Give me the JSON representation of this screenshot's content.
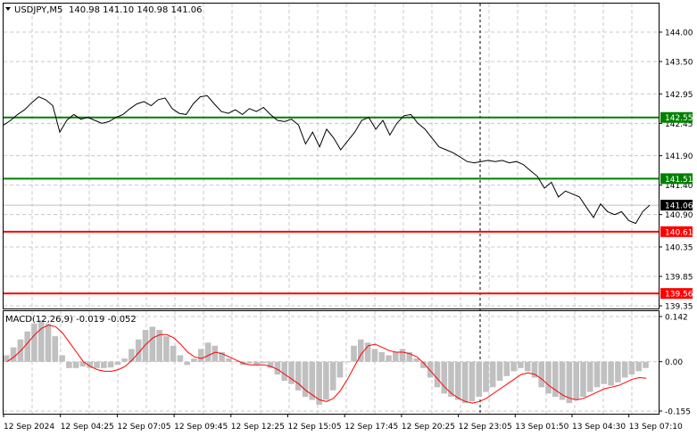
{
  "header": {
    "symbol": "USDJPY,M5",
    "ohlc": "140.98 141.10 140.98 141.06",
    "dropdown_icon": "triangle-down-icon"
  },
  "price_axis": {
    "ticks": [
      "144.00",
      "143.50",
      "142.95",
      "142.45",
      "141.90",
      "141.40",
      "140.90",
      "140.35",
      "139.85",
      "139.35"
    ],
    "tick_values": [
      144.0,
      143.5,
      142.95,
      142.45,
      141.9,
      141.4,
      140.9,
      140.35,
      139.85,
      139.35
    ],
    "range": [
      139.35,
      144.0
    ]
  },
  "levels": [
    {
      "label": "142.55",
      "value": 142.55,
      "color": "#008000"
    },
    {
      "label": "141.51",
      "value": 141.51,
      "color": "#008000"
    },
    {
      "label": "140.61",
      "value": 140.61,
      "color": "#ff0000"
    },
    {
      "label": "139.56",
      "value": 139.56,
      "color": "#ff0000"
    }
  ],
  "current_price": {
    "label": "141.06",
    "value": 141.06,
    "color": "#000000"
  },
  "macd": {
    "title": "MACD(12,26,9) -0.019 -0.052",
    "ticks": [
      "0.142",
      "0.00",
      "-0.155"
    ],
    "tick_values": [
      0.142,
      0.0,
      -0.155
    ],
    "hist_color": "#c0c0c0",
    "signal_color": "#ff0000"
  },
  "time_axis": {
    "labels": [
      "12 Sep 2024",
      "12 Sep 04:25",
      "12 Sep 07:05",
      "12 Sep 09:45",
      "12 Sep 12:25",
      "12 Sep 15:05",
      "12 Sep 17:45",
      "12 Sep 20:25",
      "12 Sep 23:05",
      "13 Sep 01:50",
      "13 Sep 04:30",
      "13 Sep 07:10"
    ]
  },
  "chart_data": {
    "type": "line",
    "price_series": [
      [
        0,
        142.42
      ],
      [
        1,
        142.5
      ],
      [
        2,
        142.6
      ],
      [
        3,
        142.68
      ],
      [
        4,
        142.8
      ],
      [
        5,
        142.9
      ],
      [
        6,
        142.85
      ],
      [
        7,
        142.75
      ],
      [
        8,
        142.3
      ],
      [
        9,
        142.5
      ],
      [
        10,
        142.6
      ],
      [
        11,
        142.52
      ],
      [
        12,
        142.55
      ],
      [
        13,
        142.5
      ],
      [
        14,
        142.45
      ],
      [
        15,
        142.48
      ],
      [
        16,
        142.55
      ],
      [
        17,
        142.6
      ],
      [
        18,
        142.7
      ],
      [
        19,
        142.78
      ],
      [
        20,
        142.82
      ],
      [
        21,
        142.75
      ],
      [
        22,
        142.85
      ],
      [
        23,
        142.88
      ],
      [
        24,
        142.7
      ],
      [
        25,
        142.62
      ],
      [
        26,
        142.6
      ],
      [
        27,
        142.78
      ],
      [
        28,
        142.9
      ],
      [
        29,
        142.92
      ],
      [
        30,
        142.78
      ],
      [
        31,
        142.65
      ],
      [
        32,
        142.62
      ],
      [
        33,
        142.68
      ],
      [
        34,
        142.6
      ],
      [
        35,
        142.7
      ],
      [
        36,
        142.65
      ],
      [
        37,
        142.72
      ],
      [
        38,
        142.6
      ],
      [
        39,
        142.5
      ],
      [
        40,
        142.48
      ],
      [
        41,
        142.52
      ],
      [
        42,
        142.42
      ],
      [
        43,
        142.1
      ],
      [
        44,
        142.3
      ],
      [
        45,
        142.05
      ],
      [
        46,
        142.35
      ],
      [
        47,
        142.2
      ],
      [
        48,
        142.0
      ],
      [
        49,
        142.15
      ],
      [
        50,
        142.3
      ],
      [
        51,
        142.5
      ],
      [
        52,
        142.55
      ],
      [
        53,
        142.35
      ],
      [
        54,
        142.5
      ],
      [
        55,
        142.25
      ],
      [
        56,
        142.45
      ],
      [
        57,
        142.58
      ],
      [
        58,
        142.6
      ],
      [
        59,
        142.45
      ],
      [
        60,
        142.35
      ],
      [
        61,
        142.2
      ],
      [
        62,
        142.05
      ],
      [
        63,
        142.0
      ],
      [
        64,
        141.95
      ],
      [
        65,
        141.88
      ],
      [
        66,
        141.8
      ],
      [
        67,
        141.78
      ],
      [
        68,
        141.8
      ],
      [
        69,
        141.82
      ],
      [
        70,
        141.8
      ],
      [
        71,
        141.82
      ],
      [
        72,
        141.78
      ],
      [
        73,
        141.8
      ],
      [
        74,
        141.75
      ],
      [
        75,
        141.65
      ],
      [
        76,
        141.55
      ],
      [
        77,
        141.35
      ],
      [
        78,
        141.45
      ],
      [
        79,
        141.2
      ],
      [
        80,
        141.3
      ],
      [
        81,
        141.25
      ],
      [
        82,
        141.2
      ],
      [
        83,
        141.02
      ],
      [
        84,
        140.85
      ],
      [
        85,
        141.08
      ],
      [
        86,
        140.95
      ],
      [
        87,
        140.9
      ],
      [
        88,
        140.95
      ],
      [
        89,
        140.8
      ],
      [
        90,
        140.75
      ],
      [
        91,
        140.95
      ],
      [
        92,
        141.06
      ]
    ],
    "macd_histogram": [
      0.02,
      0.045,
      0.07,
      0.095,
      0.12,
      0.13,
      0.12,
      0.08,
      0.02,
      -0.02,
      -0.02,
      -0.015,
      -0.02,
      -0.02,
      -0.02,
      -0.018,
      -0.01,
      0.01,
      0.04,
      0.07,
      0.1,
      0.11,
      0.1,
      0.08,
      0.05,
      0.02,
      -0.01,
      0.01,
      0.04,
      0.06,
      0.05,
      0.03,
      0.01,
      0.0,
      -0.01,
      -0.005,
      -0.01,
      -0.005,
      -0.02,
      -0.04,
      -0.06,
      -0.07,
      -0.09,
      -0.11,
      -0.12,
      -0.135,
      -0.12,
      -0.09,
      -0.05,
      0.0,
      0.05,
      0.07,
      0.06,
      0.04,
      0.03,
      0.02,
      0.03,
      0.04,
      0.03,
      0.01,
      -0.02,
      -0.05,
      -0.08,
      -0.1,
      -0.11,
      -0.12,
      -0.13,
      -0.125,
      -0.11,
      -0.095,
      -0.08,
      -0.06,
      -0.045,
      -0.03,
      -0.02,
      -0.03,
      -0.05,
      -0.08,
      -0.1,
      -0.11,
      -0.12,
      -0.13,
      -0.12,
      -0.11,
      -0.095,
      -0.08,
      -0.07,
      -0.075,
      -0.065,
      -0.05,
      -0.04,
      -0.03,
      -0.02
    ],
    "macd_signal": [
      0.0,
      0.015,
      0.035,
      0.06,
      0.085,
      0.105,
      0.115,
      0.11,
      0.09,
      0.06,
      0.03,
      0.0,
      -0.015,
      -0.025,
      -0.03,
      -0.03,
      -0.025,
      -0.015,
      0.005,
      0.03,
      0.055,
      0.075,
      0.085,
      0.085,
      0.075,
      0.055,
      0.03,
      0.015,
      0.01,
      0.02,
      0.03,
      0.025,
      0.015,
      0.005,
      -0.005,
      -0.01,
      -0.01,
      -0.01,
      -0.015,
      -0.025,
      -0.04,
      -0.055,
      -0.07,
      -0.09,
      -0.105,
      -0.12,
      -0.125,
      -0.115,
      -0.09,
      -0.055,
      -0.015,
      0.025,
      0.05,
      0.055,
      0.045,
      0.035,
      0.03,
      0.03,
      0.025,
      0.015,
      -0.005,
      -0.03,
      -0.055,
      -0.08,
      -0.1,
      -0.115,
      -0.125,
      -0.13,
      -0.125,
      -0.115,
      -0.1,
      -0.085,
      -0.07,
      -0.055,
      -0.04,
      -0.035,
      -0.04,
      -0.055,
      -0.075,
      -0.09,
      -0.105,
      -0.115,
      -0.12,
      -0.115,
      -0.105,
      -0.095,
      -0.085,
      -0.08,
      -0.075,
      -0.065,
      -0.055,
      -0.05,
      -0.052
    ],
    "ylim_price": [
      139.35,
      144.0
    ],
    "ylim_macd": [
      -0.155,
      0.142
    ],
    "grid": true
  }
}
